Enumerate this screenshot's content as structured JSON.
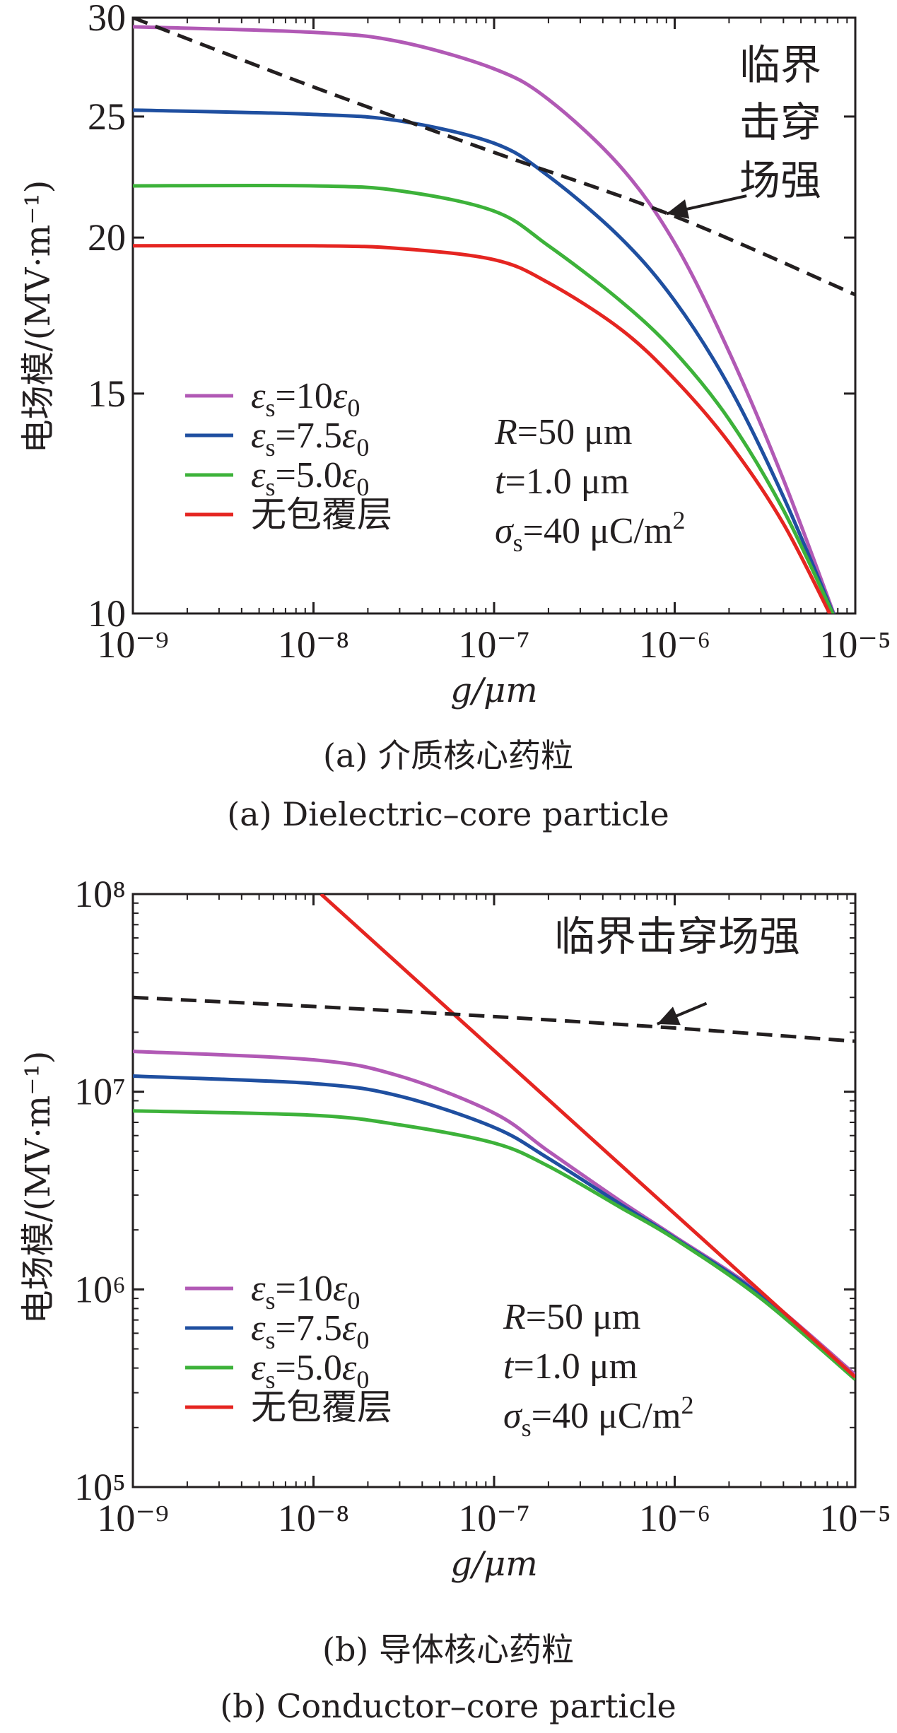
{
  "colors": {
    "eps10": "#b159b5",
    "eps75": "#1f4fa0",
    "eps50": "#3db23a",
    "none": "#e52521",
    "critical": "#231f20"
  },
  "chart_data": [
    {
      "type": "line",
      "caption_cn": "(a) 介质核心药粒",
      "caption_en": "(a) Dielectric–core particle",
      "xlabel": "g/μm",
      "ylabel": "电场模/(MV·m⁻¹)",
      "xscale": "log",
      "yscale": "log",
      "xlim": [
        1e-09,
        1e-05
      ],
      "ylim": [
        10,
        30
      ],
      "xticks": [
        {
          "value": 1e-09,
          "label": "10⁻⁹"
        },
        {
          "value": 1e-08,
          "label": "10⁻⁸"
        },
        {
          "value": 1e-07,
          "label": "10⁻⁷"
        },
        {
          "value": 1e-06,
          "label": "10⁻⁶"
        },
        {
          "value": 1e-05,
          "label": "10⁻⁵"
        }
      ],
      "yticks": [
        {
          "value": 10,
          "label": "10"
        },
        {
          "value": 15,
          "label": "15"
        },
        {
          "value": 20,
          "label": "20"
        },
        {
          "value": 25,
          "label": "25"
        },
        {
          "value": 30,
          "label": "30"
        }
      ],
      "critical_label": [
        "临界",
        "击穿",
        "场强"
      ],
      "params": [
        "R=50 μm",
        "t=1.0 μm",
        "σs=40 μC/m²"
      ],
      "series": [
        {
          "name": "εs=10ε0",
          "color_key": "eps10",
          "style": "solid",
          "x": [
            1e-09,
            1e-08,
            3e-08,
            1e-07,
            2e-07,
            5e-07,
            1e-06,
            2e-06,
            4e-06,
            8e-06
          ],
          "y": [
            29.5,
            29.2,
            28.7,
            27.3,
            25.8,
            22.8,
            19.8,
            16.2,
            12.8,
            9.8
          ]
        },
        {
          "name": "εs=7.5ε0",
          "color_key": "eps75",
          "style": "solid",
          "x": [
            1e-09,
            1e-08,
            3e-08,
            1e-07,
            2e-07,
            5e-07,
            1e-06,
            2e-06,
            4e-06,
            8e-06
          ],
          "y": [
            25.3,
            25.1,
            24.8,
            23.8,
            22.4,
            20.0,
            17.8,
            15.2,
            12.4,
            9.8
          ]
        },
        {
          "name": "εs=5.0ε0",
          "color_key": "eps50",
          "style": "solid",
          "x": [
            1e-09,
            1e-08,
            3e-08,
            1e-07,
            2e-07,
            5e-07,
            1e-06,
            2e-06,
            4e-06,
            8e-06
          ],
          "y": [
            22.0,
            22.0,
            21.8,
            21.0,
            19.7,
            17.8,
            16.2,
            14.3,
            12.1,
            9.8
          ]
        },
        {
          "name": "无包覆层",
          "color_key": "none",
          "style": "solid",
          "x": [
            1e-09,
            1e-08,
            3e-08,
            1e-07,
            2e-07,
            5e-07,
            1e-06,
            2e-06,
            4e-06,
            8e-06
          ],
          "y": [
            19.7,
            19.7,
            19.6,
            19.2,
            18.4,
            16.9,
            15.4,
            13.7,
            11.8,
            9.7
          ]
        },
        {
          "name": "临界击穿场强",
          "color_key": "critical",
          "style": "dashed",
          "x": [
            1e-09,
            1e-08,
            1e-07,
            1e-06,
            1e-05
          ],
          "y": [
            30.0,
            26.4,
            23.4,
            20.8,
            18.0
          ]
        }
      ],
      "arrow": {
        "from": [
          2.5e-06,
          21.6
        ],
        "to": [
          9e-07,
          20.9
        ]
      }
    },
    {
      "type": "line",
      "caption_cn": "(b) 导体核心药粒",
      "caption_en": "(b) Conductor–core particle",
      "xlabel": "g/μm",
      "ylabel": "电场模/(MV·m⁻¹)",
      "xscale": "log",
      "yscale": "log",
      "xlim": [
        1e-09,
        1e-05
      ],
      "ylim": [
        100000.0,
        100000000.0
      ],
      "xticks": [
        {
          "value": 1e-09,
          "label": "10⁻⁹"
        },
        {
          "value": 1e-08,
          "label": "10⁻⁸"
        },
        {
          "value": 1e-07,
          "label": "10⁻⁷"
        },
        {
          "value": 1e-06,
          "label": "10⁻⁶"
        },
        {
          "value": 1e-05,
          "label": "10⁻⁵"
        }
      ],
      "yticks": [
        {
          "value": 100000.0,
          "label": "10⁵"
        },
        {
          "value": 1000000.0,
          "label": "10⁶"
        },
        {
          "value": 10000000.0,
          "label": "10⁷"
        },
        {
          "value": 100000000.0,
          "label": "10⁸"
        }
      ],
      "critical_label": [
        "临界击穿场强"
      ],
      "params": [
        "R=50 μm",
        "t=1.0 μm",
        "σs=40 μC/m²"
      ],
      "series": [
        {
          "name": "εs=10ε0",
          "color_key": "eps10",
          "style": "solid",
          "x": [
            1e-09,
            1e-08,
            3e-08,
            1e-07,
            2e-07,
            5e-07,
            1e-06,
            3e-06,
            1e-05
          ],
          "y": [
            16000000.0,
            14500000.0,
            12000000.0,
            7800000.0,
            5000000.0,
            2800000.0,
            1850000.0,
            950000.0,
            370000.0
          ]
        },
        {
          "name": "εs=7.5ε0",
          "color_key": "eps75",
          "style": "solid",
          "x": [
            1e-09,
            1e-08,
            3e-08,
            1e-07,
            2e-07,
            5e-07,
            1e-06,
            3e-06,
            1e-05
          ],
          "y": [
            12000000.0,
            11000000.0,
            9500000.0,
            6600000.0,
            4600000.0,
            2700000.0,
            1820000.0,
            930000.0,
            360000.0
          ]
        },
        {
          "name": "εs=5.0ε0",
          "color_key": "eps50",
          "style": "solid",
          "x": [
            1e-09,
            1e-08,
            3e-08,
            1e-07,
            2e-07,
            5e-07,
            1e-06,
            3e-06,
            1e-05
          ],
          "y": [
            8000000.0,
            7600000.0,
            6800000.0,
            5500000.0,
            4200000.0,
            2600000.0,
            1800000.0,
            900000.0,
            350000.0
          ]
        },
        {
          "name": "无包覆层",
          "color_key": "none",
          "style": "solid",
          "x": [
            1.1e-08,
            1e-05
          ],
          "y": [
            100000000.0,
            360000.0
          ]
        },
        {
          "name": "临界击穿场强",
          "color_key": "critical",
          "style": "dashed",
          "x": [
            1e-09,
            1e-08,
            1e-07,
            1e-06,
            1e-05
          ],
          "y": [
            30000000.0,
            27000000.0,
            24000000.0,
            21000000.0,
            18000000.0
          ]
        }
      ],
      "arrow": {
        "from": [
          1.5e-06,
          28000000.0
        ],
        "to": [
          8e-07,
          22000000.0
        ]
      }
    }
  ]
}
